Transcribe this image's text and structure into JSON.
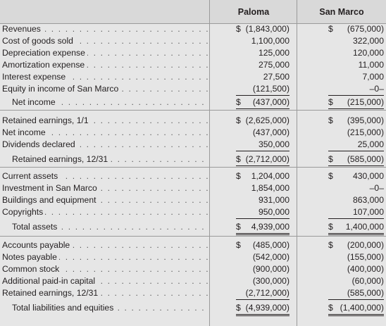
{
  "headers": {
    "paloma": "Paloma",
    "san_marco": "San Marco"
  },
  "rows": [
    {
      "label": "Revenues",
      "indent": false,
      "p_cur": "$",
      "p": "(1,843,000)",
      "s_cur": "$",
      "s": "(675,000)"
    },
    {
      "label": "Cost of goods sold",
      "indent": false,
      "p_cur": "",
      "p": "1,100,000",
      "s_cur": "",
      "s": "322,000"
    },
    {
      "label": "Depreciation expense",
      "indent": false,
      "p_cur": "",
      "p": "125,000",
      "s_cur": "",
      "s": "120,000"
    },
    {
      "label": "Amortization expense",
      "indent": false,
      "p_cur": "",
      "p": "275,000",
      "s_cur": "",
      "s": "11,000"
    },
    {
      "label": "Interest expense",
      "indent": false,
      "p_cur": "",
      "p": "27,500",
      "s_cur": "",
      "s": "7,000"
    },
    {
      "label": "Equity in income of San Marco",
      "indent": false,
      "p_cur": "",
      "p": "(121,500)",
      "s_cur": "",
      "s": "–0–",
      "p_ul": "single",
      "s_ul": "single"
    },
    {
      "label": "Net income",
      "indent": true,
      "p_cur": "$",
      "p": "(437,000)",
      "s_cur": "$",
      "s": "(215,000)",
      "p_ul": "double",
      "s_ul": "double"
    },
    {
      "label": "Retained earnings, 1/1",
      "indent": false,
      "p_cur": "$",
      "p": "(2,625,000)",
      "s_cur": "$",
      "s": "(395,000)"
    },
    {
      "label": "Net income",
      "indent": false,
      "p_cur": "",
      "p": "(437,000)",
      "s_cur": "",
      "s": "(215,000)"
    },
    {
      "label": "Dividends declared",
      "indent": false,
      "p_cur": "",
      "p": "350,000",
      "s_cur": "",
      "s": "25,000",
      "p_ul": "single",
      "s_ul": "single"
    },
    {
      "label": "Retained earnings, 12/31",
      "indent": true,
      "p_cur": "$",
      "p": "(2,712,000)",
      "s_cur": "$",
      "s": "(585,000)",
      "p_ul": "double",
      "s_ul": "double"
    },
    {
      "label": "Current assets",
      "indent": false,
      "p_cur": "$",
      "p": "1,204,000",
      "s_cur": "$",
      "s": "430,000"
    },
    {
      "label": "Investment in San Marco",
      "indent": false,
      "p_cur": "",
      "p": "1,854,000",
      "s_cur": "",
      "s": "–0–"
    },
    {
      "label": "Buildings and equipment",
      "indent": false,
      "p_cur": "",
      "p": "931,000",
      "s_cur": "",
      "s": "863,000"
    },
    {
      "label": "Copyrights",
      "indent": false,
      "p_cur": "",
      "p": "950,000",
      "s_cur": "",
      "s": "107,000",
      "p_ul": "single",
      "s_ul": "single"
    },
    {
      "label": "Total assets",
      "indent": true,
      "p_cur": "$",
      "p": "4,939,000",
      "s_cur": "$",
      "s": "1,400,000",
      "p_ul": "double",
      "s_ul": "double"
    },
    {
      "label": "Accounts payable",
      "indent": false,
      "p_cur": "$",
      "p": "(485,000)",
      "s_cur": "$",
      "s": "(200,000)"
    },
    {
      "label": "Notes payable",
      "indent": false,
      "p_cur": "",
      "p": "(542,000)",
      "s_cur": "",
      "s": "(155,000)"
    },
    {
      "label": "Common stock",
      "indent": false,
      "p_cur": "",
      "p": "(900,000)",
      "s_cur": "",
      "s": "(400,000)"
    },
    {
      "label": "Additional paid-in capital",
      "indent": false,
      "p_cur": "",
      "p": "(300,000)",
      "s_cur": "",
      "s": "(60,000)"
    },
    {
      "label": "Retained earnings, 12/31",
      "indent": false,
      "p_cur": "",
      "p": "(2,712,000)",
      "s_cur": "",
      "s": "(585,000)",
      "p_ul": "single",
      "s_ul": "single"
    },
    {
      "label": "Total liabilities and equities",
      "indent": true,
      "p_cur": "$",
      "p": "(4,939,000)",
      "s_cur": "$",
      "s": "(1,400,000)",
      "p_ul": "double",
      "s_ul": "double"
    }
  ]
}
